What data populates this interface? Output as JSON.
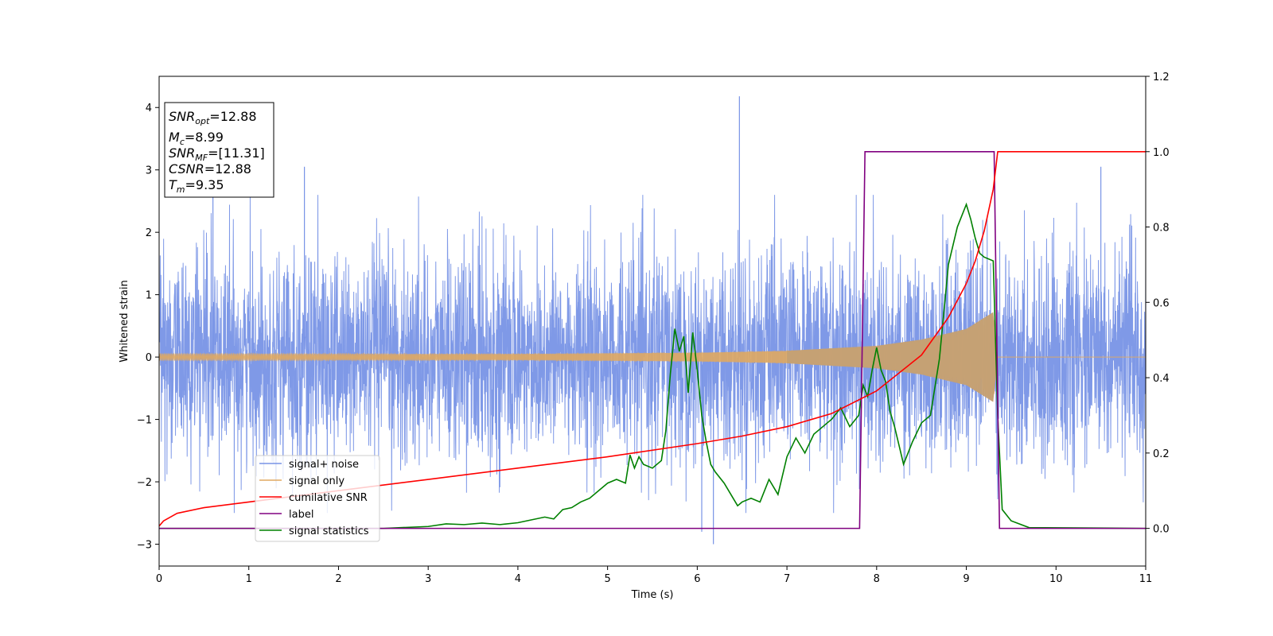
{
  "chart_data": {
    "type": "line",
    "xlabel": "Time (s)",
    "ylabel": "Whitened strain",
    "xlim": [
      0,
      11
    ],
    "ylim_left": [
      -3.35,
      4.5
    ],
    "ylim_right": [
      -0.1,
      1.2
    ],
    "x_ticks": [
      "0",
      "1",
      "2",
      "3",
      "4",
      "5",
      "6",
      "7",
      "8",
      "9",
      "10",
      "11"
    ],
    "y_ticks_left": [
      "−3",
      "−2",
      "−1",
      "0",
      "1",
      "2",
      "3",
      "4"
    ],
    "y_ticks_right": [
      "0.0",
      "0.2",
      "0.4",
      "0.6",
      "0.8",
      "1.0",
      "1.2"
    ],
    "info_box": {
      "snr_opt": {
        "sym": "SNR",
        "sub": "opt",
        "value": "=12.88"
      },
      "mc": {
        "sym": "M",
        "sub": "c",
        "value": "=8.99"
      },
      "snr_mf": {
        "sym": "SNR",
        "sub": "MF",
        "value": "=[11.31]"
      },
      "csnr": {
        "sym": "CSNR",
        "sub": "",
        "value": "=12.88"
      },
      "tm": {
        "sym": "T",
        "sub": "m",
        "value": "=9.35"
      }
    },
    "legend": [
      "signal+ noise",
      "signal only",
      "cumilative SNR",
      "label",
      "signal statistics"
    ],
    "colors": {
      "noise": "#7893e6",
      "signal": "#e0a960",
      "signal_fill": "#c4a074",
      "snr": "#ff0000",
      "label": "#800080",
      "stat": "#008000"
    },
    "series": [
      {
        "name": "signal+ noise",
        "axis": "left",
        "description_values": {
          "std": 1.0,
          "min": -3.0,
          "max": 4.18,
          "spikes": [
            [
              0.6,
              2.6
            ],
            [
              1.62,
              3.05
            ],
            [
              6.47,
              4.18
            ],
            [
              10.5,
              3.05
            ],
            [
              6.18,
              -3.0
            ],
            [
              6.05,
              -2.8
            ]
          ]
        }
      },
      {
        "name": "signal only",
        "axis": "left",
        "t_merger": 9.35,
        "amplitude_points": [
          [
            0,
            0.05
          ],
          [
            4,
            0.05
          ],
          [
            6,
            0.07
          ],
          [
            7,
            0.1
          ],
          [
            8,
            0.18
          ],
          [
            8.5,
            0.28
          ],
          [
            9.0,
            0.45
          ],
          [
            9.3,
            0.72
          ],
          [
            9.35,
            0.0
          ],
          [
            11,
            0.0
          ]
        ]
      },
      {
        "name": "cumilative SNR",
        "axis": "right",
        "x": [
          0,
          0.05,
          0.2,
          0.5,
          1,
          2,
          3,
          4,
          5,
          6,
          6.5,
          7,
          7.5,
          8,
          8.5,
          8.8,
          9.0,
          9.1,
          9.2,
          9.3,
          9.35,
          11
        ],
        "y": [
          0.006,
          0.02,
          0.04,
          0.055,
          0.07,
          0.1,
          0.13,
          0.16,
          0.19,
          0.225,
          0.245,
          0.27,
          0.305,
          0.365,
          0.46,
          0.56,
          0.65,
          0.71,
          0.79,
          0.9,
          1.0,
          1.0
        ]
      },
      {
        "name": "label",
        "axis": "right",
        "x": [
          0,
          7.81,
          7.87,
          9.31,
          9.37,
          11
        ],
        "y": [
          0,
          0,
          1,
          1,
          0,
          0
        ]
      },
      {
        "name": "signal statistics",
        "axis": "right",
        "x": [
          0,
          2.5,
          3.0,
          3.2,
          3.4,
          3.6,
          3.8,
          4.0,
          4.1,
          4.3,
          4.4,
          4.5,
          4.6,
          4.7,
          4.8,
          4.9,
          5.0,
          5.1,
          5.2,
          5.25,
          5.3,
          5.35,
          5.4,
          5.5,
          5.6,
          5.65,
          5.7,
          5.75,
          5.8,
          5.85,
          5.9,
          5.95,
          6.0,
          6.05,
          6.1,
          6.15,
          6.2,
          6.3,
          6.4,
          6.45,
          6.5,
          6.6,
          6.7,
          6.8,
          6.9,
          7.0,
          7.1,
          7.2,
          7.3,
          7.4,
          7.5,
          7.6,
          7.7,
          7.8,
          7.85,
          7.9,
          7.95,
          8.0,
          8.05,
          8.1,
          8.15,
          8.2,
          8.25,
          8.3,
          8.4,
          8.5,
          8.6,
          8.7,
          8.8,
          8.9,
          9.0,
          9.05,
          9.1,
          9.15,
          9.2,
          9.3,
          9.35,
          9.4,
          9.5,
          9.7,
          11
        ],
        "y": [
          0.0,
          0.0,
          0.005,
          0.012,
          0.01,
          0.014,
          0.01,
          0.015,
          0.02,
          0.03,
          0.025,
          0.05,
          0.055,
          0.07,
          0.08,
          0.1,
          0.12,
          0.13,
          0.12,
          0.195,
          0.16,
          0.19,
          0.17,
          0.16,
          0.18,
          0.26,
          0.41,
          0.53,
          0.47,
          0.51,
          0.36,
          0.52,
          0.42,
          0.3,
          0.23,
          0.17,
          0.15,
          0.12,
          0.08,
          0.06,
          0.07,
          0.08,
          0.07,
          0.13,
          0.09,
          0.19,
          0.24,
          0.2,
          0.25,
          0.27,
          0.29,
          0.32,
          0.27,
          0.3,
          0.38,
          0.35,
          0.42,
          0.48,
          0.42,
          0.39,
          0.31,
          0.27,
          0.22,
          0.17,
          0.23,
          0.28,
          0.3,
          0.45,
          0.7,
          0.8,
          0.86,
          0.82,
          0.77,
          0.73,
          0.72,
          0.71,
          0.3,
          0.05,
          0.02,
          0.002,
          0.0
        ]
      }
    ]
  }
}
